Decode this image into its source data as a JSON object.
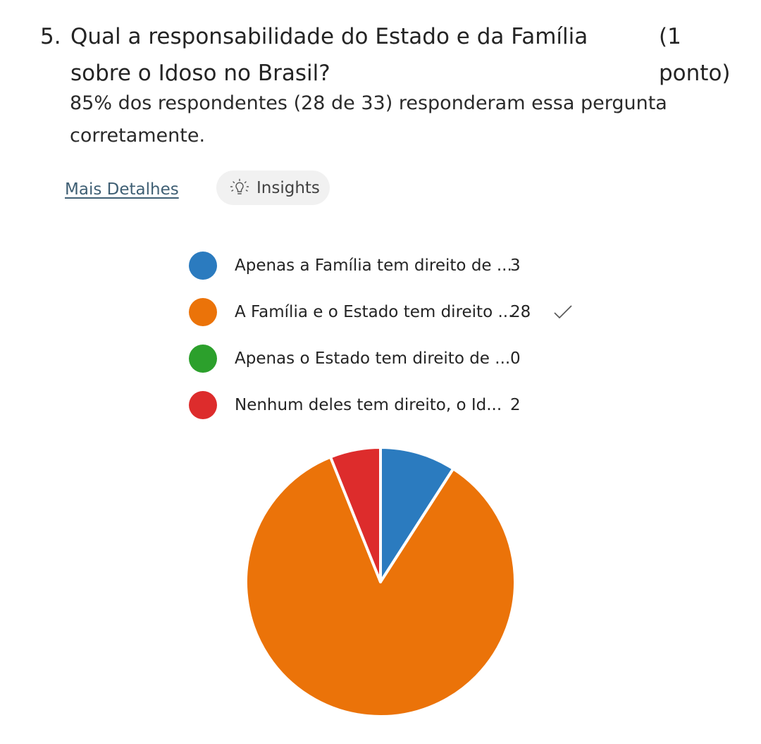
{
  "question": {
    "number": "5.",
    "text": "Qual a responsabilidade do Estado e da Família sobre o Idoso no Brasil?",
    "points": "(1 ponto)",
    "summary": "85% dos respondentes (28 de 33) responderam essa pergunta corretamente."
  },
  "actions": {
    "more_details": "Mais Detalhes",
    "insights": "Insights",
    "insights_icon": "lightbulb-icon"
  },
  "chart_data": {
    "type": "pie",
    "slices": [
      {
        "label": "Apenas a Família tem direito de ...",
        "value": 3,
        "color": "#2b7bbf",
        "correct": false
      },
      {
        "label": "A Família e o Estado tem direito ...",
        "value": 28,
        "color": "#eb7309",
        "correct": true
      },
      {
        "label": "Apenas o Estado tem direito de ...",
        "value": 0,
        "color": "#2ca02c",
        "correct": false
      },
      {
        "label": "Nenhum deles tem direito, o Id...",
        "value": 2,
        "color": "#dd2c2c",
        "correct": false
      }
    ],
    "correct_icon": "checkmark-icon"
  }
}
